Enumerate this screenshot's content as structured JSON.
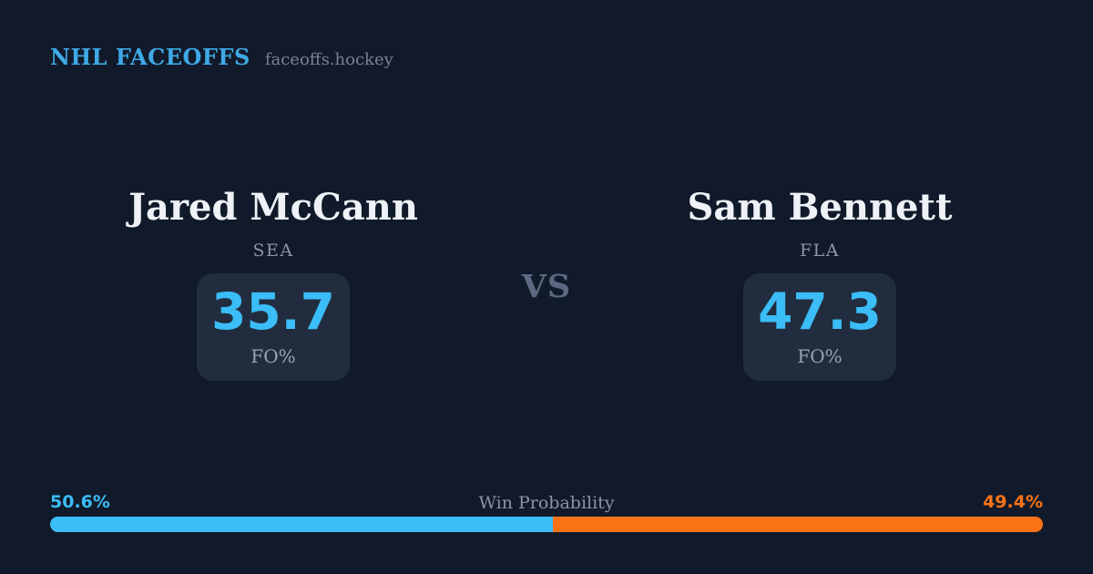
{
  "brand": {
    "title": "NHL FACEOFFS",
    "domain": "faceoffs.hockey"
  },
  "matchup": {
    "vs_label": "VS",
    "players": [
      {
        "name": "Jared McCann",
        "team": "SEA",
        "stat_value": "35.7",
        "stat_label": "FO%"
      },
      {
        "name": "Sam Bennett",
        "team": "FLA",
        "stat_value": "47.3",
        "stat_label": "FO%"
      }
    ]
  },
  "win_probability": {
    "label": "Win Probability",
    "left_pct_label": "50.6%",
    "right_pct_label": "49.4%",
    "left_value": 50.6,
    "right_value": 49.4
  },
  "colors": {
    "background": "#111a2a",
    "stat_box_background": "#212d3e",
    "accent_blue": "#3bbdf8",
    "brand_blue": "#3fa9e6",
    "accent_orange": "#f97316",
    "text_white": "#eef2f7",
    "text_gray": "#8b95a4",
    "vs_gray": "#5b6a82"
  }
}
